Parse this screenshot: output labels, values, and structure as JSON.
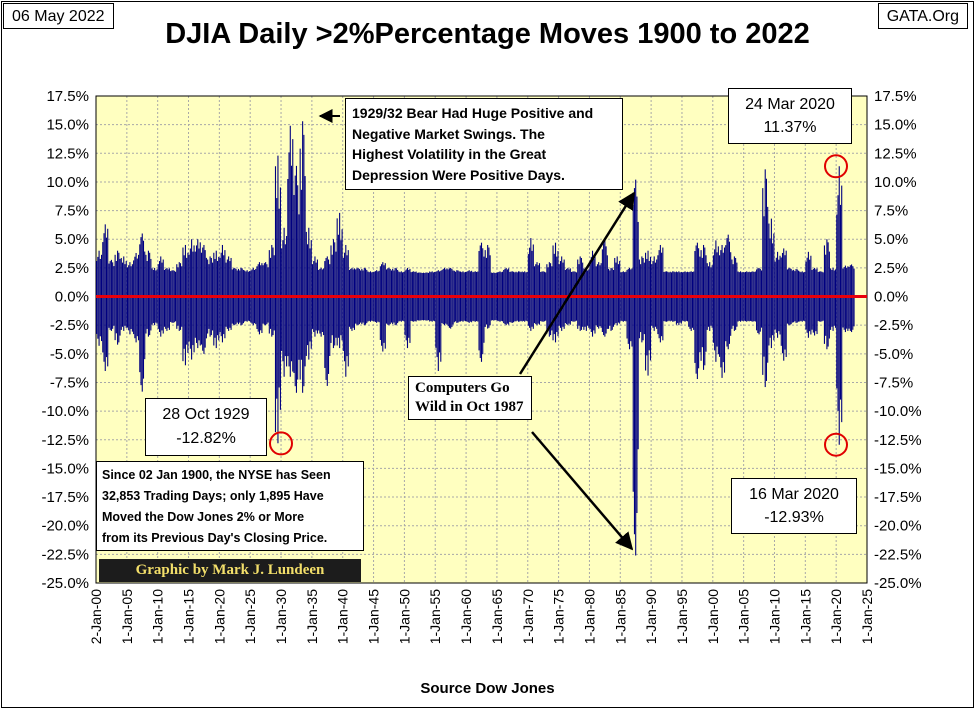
{
  "header": {
    "date": "06 May 2022",
    "brand": "GATA.Org"
  },
  "chart_data": {
    "type": "bar",
    "title": "DJIA Daily >2%Percentage Moves 1900 to 2022",
    "xlabel": "Source Dow Jones",
    "ylabel": "",
    "ylim": [
      -25,
      17.5
    ],
    "y_ticks": [
      "17.5%",
      "15.0%",
      "12.5%",
      "10.0%",
      "7.5%",
      "5.0%",
      "2.5%",
      "0.0%",
      "-2.5%",
      "-5.0%",
      "-7.5%",
      "-10.0%",
      "-12.5%",
      "-15.0%",
      "-17.5%",
      "-20.0%",
      "-22.5%",
      "-25.0%"
    ],
    "x_ticks": [
      "2-Jan-00",
      "1-Jan-05",
      "1-Jan-10",
      "1-Jan-15",
      "1-Jan-20",
      "1-Jan-25",
      "1-Jan-30",
      "1-Jan-35",
      "1-Jan-40",
      "1-Jan-45",
      "1-Jan-50",
      "1-Jan-55",
      "1-Jan-60",
      "1-Jan-65",
      "1-Jan-70",
      "1-Jan-75",
      "1-Jan-80",
      "1-Jan-85",
      "1-Jan-90",
      "1-Jan-95",
      "1-Jan-00",
      "1-Jan-05",
      "1-Jan-10",
      "1-Jan-15",
      "1-Jan-20",
      "1-Jan-25"
    ],
    "grid": true,
    "zero_line_color": "#e8000b",
    "bar_color": "#000080",
    "plot_background": "#ffffc0",
    "approx_year_extremes": [
      {
        "year": 1900,
        "up": 4.0,
        "down": -4.3
      },
      {
        "year": 1901,
        "up": 6.3,
        "down": -6.5
      },
      {
        "year": 1902,
        "up": 3.2,
        "down": -3.0
      },
      {
        "year": 1903,
        "up": 4.0,
        "down": -4.2
      },
      {
        "year": 1904,
        "up": 3.5,
        "down": -3.0
      },
      {
        "year": 1905,
        "up": 3.0,
        "down": -3.3
      },
      {
        "year": 1906,
        "up": 3.8,
        "down": -4.0
      },
      {
        "year": 1907,
        "up": 5.5,
        "down": -8.3
      },
      {
        "year": 1908,
        "up": 4.0,
        "down": -3.5
      },
      {
        "year": 1909,
        "up": 2.5,
        "down": -2.5
      },
      {
        "year": 1910,
        "up": 3.5,
        "down": -3.5
      },
      {
        "year": 1911,
        "up": 2.5,
        "down": -3.0
      },
      {
        "year": 1912,
        "up": 2.3,
        "down": -2.3
      },
      {
        "year": 1913,
        "up": 3.0,
        "down": -3.0
      },
      {
        "year": 1914,
        "up": 4.5,
        "down": -6.0
      },
      {
        "year": 1915,
        "up": 5.0,
        "down": -5.5
      },
      {
        "year": 1916,
        "up": 5.0,
        "down": -4.5
      },
      {
        "year": 1917,
        "up": 4.5,
        "down": -5.0
      },
      {
        "year": 1918,
        "up": 3.5,
        "down": -3.5
      },
      {
        "year": 1919,
        "up": 4.0,
        "down": -4.5
      },
      {
        "year": 1920,
        "up": 4.5,
        "down": -4.0
      },
      {
        "year": 1921,
        "up": 3.5,
        "down": -3.0
      },
      {
        "year": 1922,
        "up": 2.5,
        "down": -2.5
      },
      {
        "year": 1923,
        "up": 2.5,
        "down": -2.5
      },
      {
        "year": 1924,
        "up": 2.3,
        "down": -2.2
      },
      {
        "year": 1925,
        "up": 2.5,
        "down": -2.5
      },
      {
        "year": 1926,
        "up": 3.0,
        "down": -3.3
      },
      {
        "year": 1927,
        "up": 3.0,
        "down": -2.5
      },
      {
        "year": 1928,
        "up": 4.5,
        "down": -3.5
      },
      {
        "year": 1929,
        "up": 12.3,
        "down": -12.8
      },
      {
        "year": 1930,
        "up": 6.0,
        "down": -7.0
      },
      {
        "year": 1931,
        "up": 14.9,
        "down": -7.0
      },
      {
        "year": 1932,
        "up": 11.4,
        "down": -8.4
      },
      {
        "year": 1933,
        "up": 15.3,
        "down": -8.4
      },
      {
        "year": 1934,
        "up": 6.0,
        "down": -5.5
      },
      {
        "year": 1935,
        "up": 3.5,
        "down": -3.5
      },
      {
        "year": 1936,
        "up": 2.5,
        "down": -3.5
      },
      {
        "year": 1937,
        "up": 3.5,
        "down": -7.8
      },
      {
        "year": 1938,
        "up": 5.0,
        "down": -4.5
      },
      {
        "year": 1939,
        "up": 7.3,
        "down": -4.5
      },
      {
        "year": 1940,
        "up": 4.5,
        "down": -7.0
      },
      {
        "year": 1941,
        "up": 2.5,
        "down": -3.0
      },
      {
        "year": 1942,
        "up": 2.5,
        "down": -2.5
      },
      {
        "year": 1943,
        "up": 2.5,
        "down": -2.5
      },
      {
        "year": 1944,
        "up": 2.2,
        "down": -2.2
      },
      {
        "year": 1945,
        "up": 2.3,
        "down": -2.3
      },
      {
        "year": 1946,
        "up": 3.0,
        "down": -4.8
      },
      {
        "year": 1947,
        "up": 2.5,
        "down": -2.5
      },
      {
        "year": 1948,
        "up": 2.5,
        "down": -2.5
      },
      {
        "year": 1949,
        "up": 2.2,
        "down": -2.2
      },
      {
        "year": 1950,
        "up": 2.5,
        "down": -4.5
      },
      {
        "year": 1951,
        "up": 2.2,
        "down": -2.2
      },
      {
        "year": 1952,
        "up": 2.1,
        "down": -2.1
      },
      {
        "year": 1953,
        "up": 2.1,
        "down": -2.1
      },
      {
        "year": 1954,
        "up": 2.2,
        "down": -2.2
      },
      {
        "year": 1955,
        "up": 2.3,
        "down": -6.5
      },
      {
        "year": 1956,
        "up": 2.5,
        "down": -2.5
      },
      {
        "year": 1957,
        "up": 2.5,
        "down": -2.8
      },
      {
        "year": 1958,
        "up": 2.3,
        "down": -2.3
      },
      {
        "year": 1959,
        "up": 2.2,
        "down": -2.2
      },
      {
        "year": 1960,
        "up": 2.3,
        "down": -2.3
      },
      {
        "year": 1961,
        "up": 2.2,
        "down": -2.2
      },
      {
        "year": 1962,
        "up": 4.7,
        "down": -5.7
      },
      {
        "year": 1963,
        "up": 4.5,
        "down": -2.8
      },
      {
        "year": 1964,
        "up": 2.1,
        "down": -2.1
      },
      {
        "year": 1965,
        "up": 2.2,
        "down": -2.2
      },
      {
        "year": 1966,
        "up": 2.5,
        "down": -2.5
      },
      {
        "year": 1967,
        "up": 2.2,
        "down": -2.3
      },
      {
        "year": 1968,
        "up": 2.2,
        "down": -2.2
      },
      {
        "year": 1969,
        "up": 2.2,
        "down": -2.2
      },
      {
        "year": 1970,
        "up": 5.1,
        "down": -3.0
      },
      {
        "year": 1971,
        "up": 3.0,
        "down": -2.5
      },
      {
        "year": 1972,
        "up": 2.2,
        "down": -2.2
      },
      {
        "year": 1973,
        "up": 3.0,
        "down": -3.5
      },
      {
        "year": 1974,
        "up": 4.7,
        "down": -4.0
      },
      {
        "year": 1975,
        "up": 3.5,
        "down": -3.0
      },
      {
        "year": 1976,
        "up": 2.5,
        "down": -2.5
      },
      {
        "year": 1977,
        "up": 2.2,
        "down": -2.2
      },
      {
        "year": 1978,
        "up": 3.5,
        "down": -3.0
      },
      {
        "year": 1979,
        "up": 2.5,
        "down": -3.0
      },
      {
        "year": 1980,
        "up": 4.0,
        "down": -3.5
      },
      {
        "year": 1981,
        "up": 3.0,
        "down": -2.8
      },
      {
        "year": 1982,
        "up": 4.9,
        "down": -3.5
      },
      {
        "year": 1983,
        "up": 2.5,
        "down": -3.0
      },
      {
        "year": 1984,
        "up": 3.5,
        "down": -2.5
      },
      {
        "year": 1985,
        "up": 2.2,
        "down": -2.2
      },
      {
        "year": 1986,
        "up": 2.5,
        "down": -4.6
      },
      {
        "year": 1987,
        "up": 10.2,
        "down": -22.6
      },
      {
        "year": 1988,
        "up": 3.5,
        "down": -4.0
      },
      {
        "year": 1989,
        "up": 4.0,
        "down": -6.9
      },
      {
        "year": 1990,
        "up": 3.5,
        "down": -3.0
      },
      {
        "year": 1991,
        "up": 4.5,
        "down": -4.0
      },
      {
        "year": 1992,
        "up": 2.2,
        "down": -2.2
      },
      {
        "year": 1993,
        "up": 2.2,
        "down": -2.2
      },
      {
        "year": 1994,
        "up": 2.2,
        "down": -2.5
      },
      {
        "year": 1995,
        "up": 2.2,
        "down": -2.2
      },
      {
        "year": 1996,
        "up": 2.2,
        "down": -3.0
      },
      {
        "year": 1997,
        "up": 4.7,
        "down": -7.2
      },
      {
        "year": 1998,
        "up": 4.5,
        "down": -6.4
      },
      {
        "year": 1999,
        "up": 3.0,
        "down": -3.0
      },
      {
        "year": 2000,
        "up": 4.9,
        "down": -5.7
      },
      {
        "year": 2001,
        "up": 4.5,
        "down": -7.1
      },
      {
        "year": 2002,
        "up": 5.4,
        "down": -4.6
      },
      {
        "year": 2003,
        "up": 3.5,
        "down": -3.0
      },
      {
        "year": 2004,
        "up": 2.2,
        "down": -2.2
      },
      {
        "year": 2005,
        "up": 2.2,
        "down": -2.2
      },
      {
        "year": 2006,
        "up": 2.2,
        "down": -2.2
      },
      {
        "year": 2007,
        "up": 2.5,
        "down": -3.3
      },
      {
        "year": 2008,
        "up": 11.1,
        "down": -7.9
      },
      {
        "year": 2009,
        "up": 6.8,
        "down": -4.5
      },
      {
        "year": 2010,
        "up": 3.9,
        "down": -3.6
      },
      {
        "year": 2011,
        "up": 4.2,
        "down": -5.6
      },
      {
        "year": 2012,
        "up": 2.5,
        "down": -2.5
      },
      {
        "year": 2013,
        "up": 2.4,
        "down": -2.3
      },
      {
        "year": 2014,
        "up": 2.2,
        "down": -2.2
      },
      {
        "year": 2015,
        "up": 3.9,
        "down": -3.6
      },
      {
        "year": 2016,
        "up": 2.5,
        "down": -3.4
      },
      {
        "year": 2017,
        "up": 2.2,
        "down": -2.2
      },
      {
        "year": 2018,
        "up": 5.0,
        "down": -4.6
      },
      {
        "year": 2019,
        "up": 2.5,
        "down": -3.0
      },
      {
        "year": 2020,
        "up": 11.37,
        "down": -12.93
      },
      {
        "year": 2021,
        "up": 2.7,
        "down": -3.1
      },
      {
        "year": 2022,
        "up": 2.8,
        "down": -3.1
      }
    ]
  },
  "annotations": {
    "depression_note": [
      "1929/32 Bear Had Huge Positive and",
      "Negative Market Swings.  The",
      "Highest Volatility in the Great",
      "Depression Were Positive Days."
    ],
    "oct1929": {
      "date": "28 Oct 1929",
      "value": "-12.82%"
    },
    "mar2020_up": {
      "date": "24 Mar 2020",
      "value": "11.37%"
    },
    "mar2020_down": {
      "date": "16 Mar 2020",
      "value": "-12.93%"
    },
    "computers_note": [
      "Computers Go",
      "Wild in Oct 1987"
    ],
    "nyse_note": [
      "Since 02 Jan 1900, the NYSE has Seen",
      "32,853 Trading Days; only 1,895 Have",
      "Moved the Dow Jones 2% or More",
      "from its Previous Day's Closing Price."
    ],
    "credit": "Graphic by Mark J. Lundeen"
  }
}
